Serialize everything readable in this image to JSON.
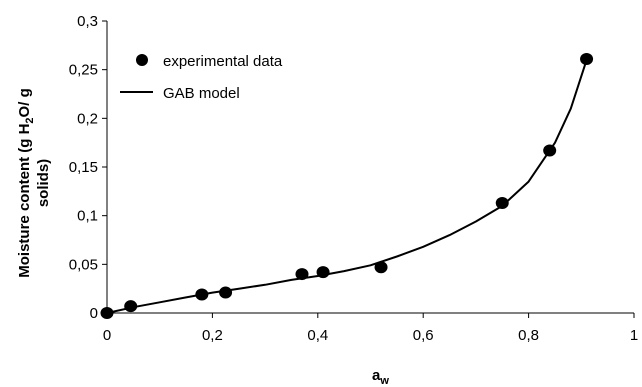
{
  "chart_data": {
    "type": "scatter",
    "xlabel_main": "a",
    "xlabel_sub": "w",
    "ylabel_line1_pre": "Moisture content (g H",
    "ylabel_line1_sub": "2",
    "ylabel_line1_post": "O/ g",
    "ylabel_line2": "solids)",
    "xlim": [
      0,
      1
    ],
    "ylim": [
      0,
      0.3
    ],
    "x_ticks": [
      0,
      0.2,
      0.4,
      0.6,
      0.8,
      1
    ],
    "x_tick_labels": [
      "0",
      "0,2",
      "0,4",
      "0,6",
      "0,8",
      "1"
    ],
    "y_ticks": [
      0,
      0.05,
      0.1,
      0.15,
      0.2,
      0.25,
      0.3
    ],
    "y_tick_labels": [
      "0",
      "0,05",
      "0,1",
      "0,15",
      "0,2",
      "0,25",
      "0,3"
    ],
    "grid": false,
    "legend_position": "top-left",
    "series": [
      {
        "name": "experimental data",
        "kind": "markers",
        "x": [
          0.0,
          0.045,
          0.18,
          0.225,
          0.37,
          0.41,
          0.52,
          0.75,
          0.84,
          0.91
        ],
        "y": [
          0.0,
          0.007,
          0.019,
          0.021,
          0.04,
          0.042,
          0.047,
          0.113,
          0.167,
          0.261
        ]
      },
      {
        "name": "GAB model",
        "kind": "line",
        "x": [
          0.0,
          0.05,
          0.1,
          0.15,
          0.2,
          0.25,
          0.3,
          0.35,
          0.4,
          0.45,
          0.5,
          0.55,
          0.6,
          0.65,
          0.7,
          0.75,
          0.8,
          0.85,
          0.88,
          0.91
        ],
        "y": [
          0.0,
          0.006,
          0.011,
          0.016,
          0.021,
          0.025,
          0.029,
          0.034,
          0.038,
          0.043,
          0.049,
          0.058,
          0.068,
          0.08,
          0.094,
          0.11,
          0.135,
          0.175,
          0.21,
          0.26
        ]
      }
    ]
  }
}
